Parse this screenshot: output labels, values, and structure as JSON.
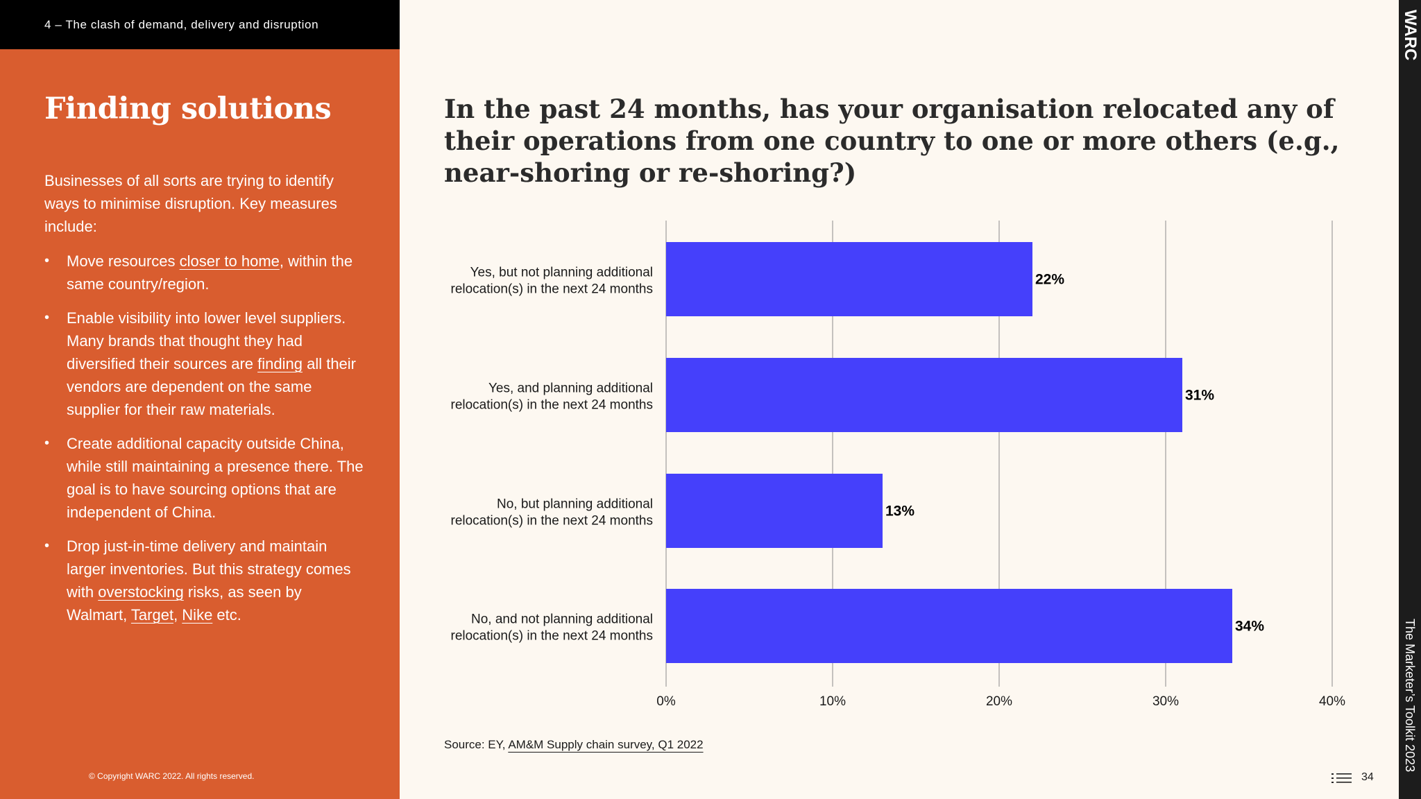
{
  "section_bar": {
    "label": "4 – The clash of demand, delivery and disruption"
  },
  "sidebar": {
    "title": "Finding solutions",
    "intro": "Businesses of all sorts are trying to identify ways to minimise disruption. Key measures include:",
    "bullets": [
      {
        "pre": "Move resources ",
        "link": "closer to home",
        "post": ", within the same country/region."
      },
      {
        "pre": "Enable visibility into lower level suppliers. Many brands that thought they had diversified their sources are ",
        "link": "finding",
        "post": " all their vendors are dependent on the same supplier for their raw materials."
      },
      {
        "text": "Create additional capacity outside China, while still maintaining a presence there. The goal is to have sourcing options that are independent of China."
      },
      {
        "pre": "Drop just-in-time delivery and maintain larger inventories. But this strategy comes with ",
        "link": "overstocking",
        "mid": " risks, as seen by Walmart, ",
        "link2": "Target",
        "mid2": ", ",
        "link3": "Nike",
        "post": " etc."
      }
    ],
    "copyright": "© Copyright WARC 2022. All rights reserved."
  },
  "chart_data": {
    "type": "bar",
    "orientation": "horizontal",
    "title": "In the past 24 months, has your organisation relocated any of their operations from one country to one or more others (e.g., near-shoring or re-shoring?)",
    "categories": [
      [
        "Yes, but not planning additional",
        "relocation(s) in the next 24 months"
      ],
      [
        "Yes, and planning additional",
        "relocation(s) in the next 24 months"
      ],
      [
        "No, but planning additional",
        "relocation(s) in the next 24 months"
      ],
      [
        "No, and not planning additional",
        "relocation(s) in the next 24 months"
      ]
    ],
    "values": [
      22,
      31,
      13,
      34
    ],
    "value_labels": [
      "22%",
      "31%",
      "13%",
      "34%"
    ],
    "xlim": [
      0,
      40
    ],
    "xticks": [
      0,
      10,
      20,
      30,
      40
    ],
    "xtick_labels": [
      "0%",
      "10%",
      "20%",
      "30%",
      "40%"
    ],
    "grid": "vertical",
    "bar_color": "#4540fb",
    "xlabel": "",
    "ylabel": ""
  },
  "source": {
    "pre": "Source: EY, ",
    "link": "AM&M Supply chain survey, Q1 2022"
  },
  "brand": "WARC",
  "toolkit": "The Marketer’s Toolkit 2023",
  "page_number": "34",
  "colors": {
    "accent": "#d95d2f",
    "section_bar": "#000000",
    "background": "#fdf8f1",
    "bar": "#4540fb"
  }
}
